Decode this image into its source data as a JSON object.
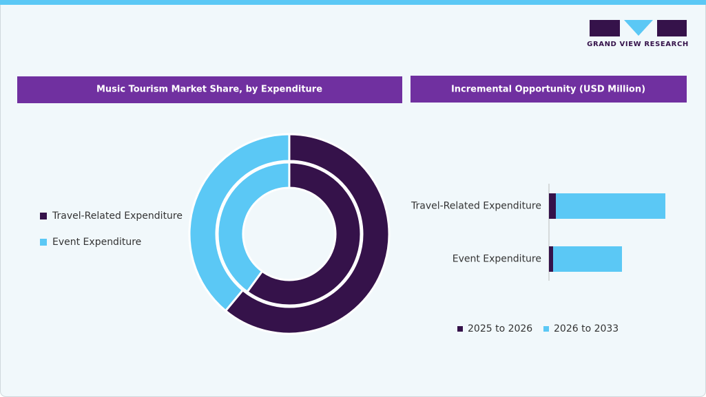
{
  "brand": "GRAND VIEW RESEARCH",
  "chart_data": [
    {
      "type": "donut",
      "title": "Music Tourism Market Share, by Expenditure",
      "categories": [
        "Travel-Related Expenditure",
        "Event Expenditure"
      ],
      "colors": [
        "#35124a",
        "#5bc8f5"
      ],
      "rings": [
        {
          "values": [
            61,
            39
          ]
        },
        {
          "values": [
            60,
            40
          ]
        }
      ]
    },
    {
      "type": "stacked-hbar",
      "title": "Incremental Opportunity (USD Million)",
      "categories": [
        "Travel-Related Expenditure",
        "Event Expenditure"
      ],
      "series": [
        {
          "name": "2025 to 2026",
          "color": "#35124a",
          "values": [
            10,
            6
          ]
        },
        {
          "name": "2026 to 2033",
          "color": "#5bc8f5",
          "values": [
            159,
            100
          ]
        }
      ]
    }
  ]
}
